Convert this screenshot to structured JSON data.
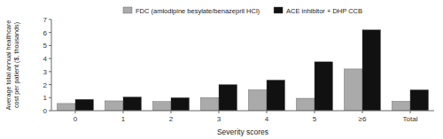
{
  "chart_data": {
    "type": "bar",
    "x_label": "Severity scores",
    "y_label": "Average total annual healthcare\ncost per patient ($, thousands)",
    "categories": [
      "0",
      "1",
      "2",
      "3",
      "4",
      "5",
      "≥6",
      "Total"
    ],
    "series": [
      {
        "name": "FDC (amlodipine besylate/benazepril HCl)",
        "color": "#aaaaaa",
        "values": [
          0.55,
          0.75,
          0.7,
          1.0,
          1.6,
          0.95,
          3.2,
          0.72
        ]
      },
      {
        "name": "ACE inhibitor + DHP CCB",
        "color": "#111111",
        "values": [
          0.87,
          1.05,
          1.0,
          2.0,
          2.35,
          3.75,
          6.2,
          1.6
        ]
      }
    ],
    "ylim": [
      0,
      7
    ],
    "yticks": [
      0,
      1,
      2,
      3,
      4,
      5,
      6,
      7
    ],
    "grid": false,
    "legend": "top"
  }
}
